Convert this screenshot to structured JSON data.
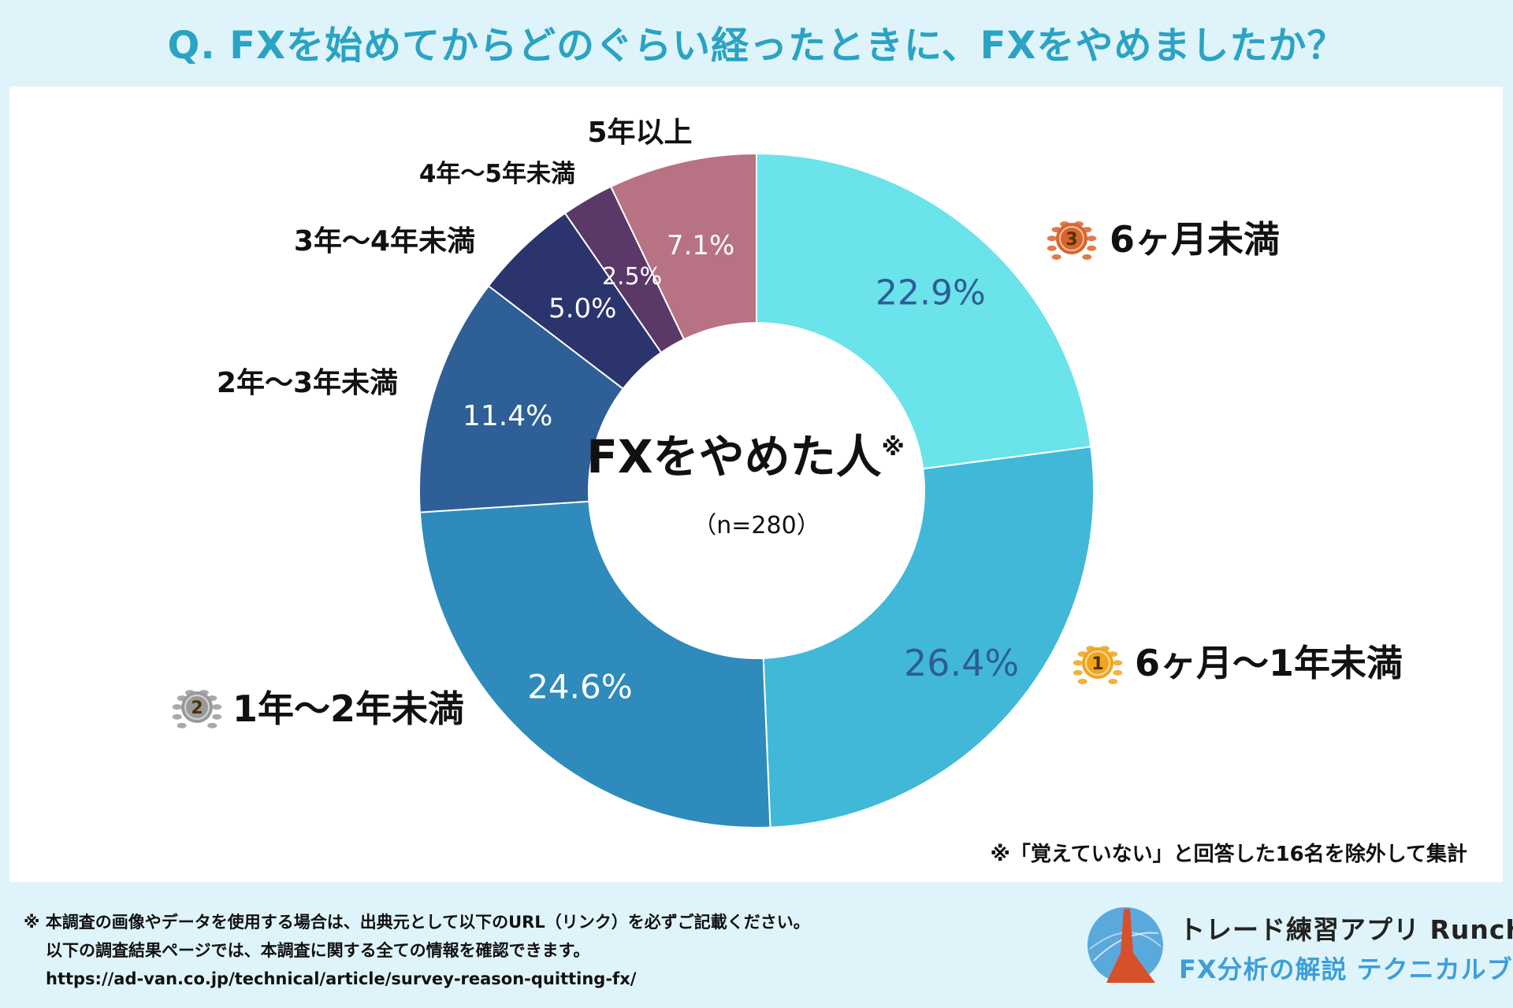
{
  "title": "Q. FXを始めてからどのぐらい経ったときに、FXをやめましたか？",
  "center": {
    "label": "FXをやめた人",
    "mark": "※",
    "n": "（n=280）"
  },
  "note": "※「覚えていない」と回答した16名を除外して集計",
  "footer": {
    "line1": "※ 本調査の画像やデータを使用する場合は、出典元として以下のURL（リンク）を必ずご記載ください。",
    "line2": "以下の調査結果ページでは、本調査に関する全ての情報を確認できます。",
    "url": "https://ad-van.co.jp/technical/article/survey-reason-quitting-fx/"
  },
  "brand": {
    "name": "トレード練習アプリ Runcha",
    "sub": "FX分析の解説 テクニカルブック"
  },
  "chart_data": {
    "type": "pie",
    "donut": true,
    "start": "12 o'clock",
    "direction": "clockwise",
    "categories": [
      "6ヶ月未満",
      "6ヶ月〜1年未満",
      "1年〜2年未満",
      "2年〜3年未満",
      "3年〜4年未満",
      "4年〜5年未満",
      "5年以上"
    ],
    "values": [
      22.9,
      26.4,
      24.6,
      11.4,
      5.0,
      2.5,
      7.1
    ],
    "value_labels": [
      "22.9%",
      "26.4%",
      "24.6%",
      "11.4%",
      "5.0%",
      "2.5%",
      "7.1%"
    ],
    "colors": [
      "#6ae3ea",
      "#42b8d8",
      "#2e8bbb",
      "#2e5f97",
      "#2c346e",
      "#5a3867",
      "#b77283"
    ],
    "value_label_colors": [
      "#2e5d96",
      "#2e5d96",
      "#ffffff",
      "#ffffff",
      "#ffffff",
      "#ffffff",
      "#ffffff"
    ],
    "rank_badges": {
      "6ヶ月〜1年未満": "1",
      "1年〜2年未満": "2",
      "6ヶ月未満": "3"
    },
    "badge_colors": {
      "1": "#f0a51d",
      "2": "#9a9a9a",
      "3": "#d9642a"
    }
  }
}
